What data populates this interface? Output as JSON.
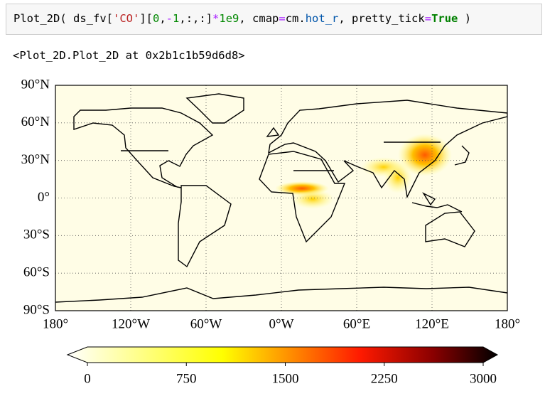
{
  "code_cell": {
    "tokens": [
      {
        "text": "Plot_2D( ds_fv[",
        "color": "#000000"
      },
      {
        "text": "'CO'",
        "color": "#ba2121"
      },
      {
        "text": "][",
        "color": "#000000"
      },
      {
        "text": "0",
        "color": "#008800"
      },
      {
        "text": ",",
        "color": "#000000"
      },
      {
        "text": "-",
        "color": "#aa22ff"
      },
      {
        "text": "1",
        "color": "#008800"
      },
      {
        "text": ",:,:]",
        "color": "#000000"
      },
      {
        "text": "*",
        "color": "#aa22ff"
      },
      {
        "text": "1e9",
        "color": "#008800"
      },
      {
        "text": ", cmap",
        "color": "#000000"
      },
      {
        "text": "=",
        "color": "#aa22ff"
      },
      {
        "text": "cm.",
        "color": "#000000"
      },
      {
        "text": "hot_r",
        "color": "#0055aa"
      },
      {
        "text": ", pretty_tick",
        "color": "#000000"
      },
      {
        "text": "=",
        "color": "#aa22ff"
      },
      {
        "text": "True",
        "color": "#008000",
        "bold": true
      },
      {
        "text": " )",
        "color": "#000000"
      }
    ]
  },
  "output": "<Plot_2D.Plot_2D at 0x2b1c1b59d6d8>",
  "map": {
    "lat_lim": [
      -90,
      90
    ],
    "lon_lim": [
      -180,
      180
    ],
    "grid": true,
    "lat_ticks": [
      {
        "value": 90,
        "label": "90°N"
      },
      {
        "value": 60,
        "label": "60°N"
      },
      {
        "value": 30,
        "label": "30°N"
      },
      {
        "value": 0,
        "label": "0°"
      },
      {
        "value": -30,
        "label": "30°S"
      },
      {
        "value": -60,
        "label": "60°S"
      },
      {
        "value": -90,
        "label": "90°S"
      }
    ],
    "lon_ticks": [
      {
        "value": -180,
        "label": "180°"
      },
      {
        "value": -120,
        "label": "120°W"
      },
      {
        "value": -60,
        "label": "60°W"
      },
      {
        "value": 0,
        "label": "0°W"
      },
      {
        "value": 60,
        "label": "60°E"
      },
      {
        "value": 120,
        "label": "120°E"
      },
      {
        "value": 180,
        "label": "180°"
      }
    ],
    "colorbar": {
      "lim": [
        0,
        3000
      ],
      "ticks": [
        0,
        750,
        1500,
        2250,
        3000
      ]
    }
  }
}
